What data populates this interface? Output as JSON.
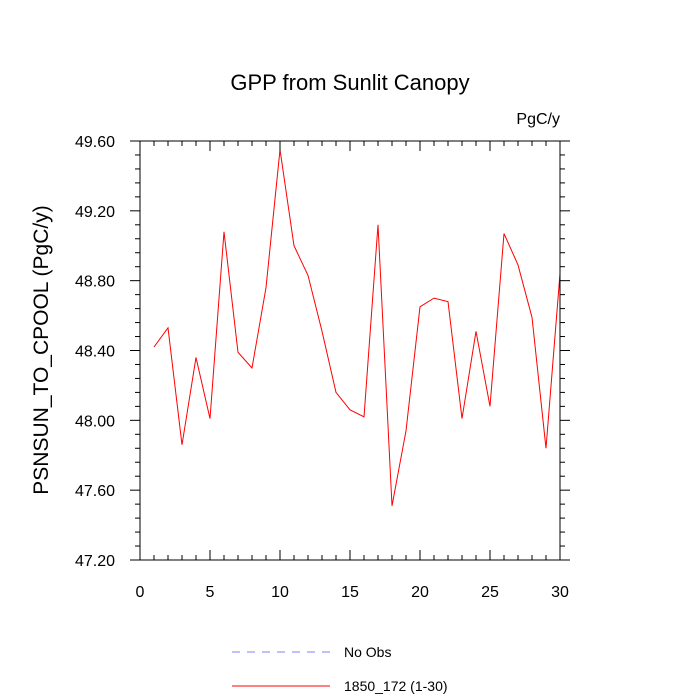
{
  "chart_data": {
    "type": "line",
    "title": "GPP from Sunlit Canopy",
    "units": "PgC/y",
    "ylabel": "PSNSUN_TO_CPOOL  (PgC/y)",
    "xlabel": "",
    "xlim": [
      0,
      30
    ],
    "ylim": [
      47.2,
      49.6
    ],
    "xticks": [
      0,
      5,
      10,
      15,
      20,
      25,
      30
    ],
    "xtick_labels": [
      "0",
      "5",
      "10",
      "15",
      "20",
      "25",
      "30"
    ],
    "yticks": [
      47.2,
      47.6,
      48.0,
      48.4,
      48.8,
      49.2,
      49.6
    ],
    "ytick_labels": [
      "47.20",
      "47.60",
      "48.00",
      "48.40",
      "48.80",
      "49.20",
      "49.60"
    ],
    "series": [
      {
        "name": "No Obs",
        "color": "#8080ff",
        "style": "dashed",
        "x": [],
        "values": []
      },
      {
        "name": "1850_172 (1-30)",
        "color": "#ff0000",
        "style": "solid",
        "x": [
          1,
          2,
          3,
          4,
          5,
          6,
          7,
          8,
          9,
          10,
          11,
          12,
          13,
          14,
          15,
          16,
          17,
          18,
          19,
          20,
          21,
          22,
          23,
          24,
          25,
          26,
          27,
          28,
          29,
          30
        ],
        "values": [
          48.42,
          48.53,
          47.86,
          48.36,
          48.01,
          49.08,
          48.39,
          48.3,
          48.76,
          49.55,
          49.0,
          48.83,
          48.51,
          48.16,
          48.06,
          48.02,
          49.12,
          47.51,
          47.94,
          48.65,
          48.7,
          48.68,
          48.01,
          48.51,
          48.08,
          49.07,
          48.89,
          48.59,
          47.84,
          48.84
        ]
      }
    ],
    "legend": "bottom-center"
  }
}
